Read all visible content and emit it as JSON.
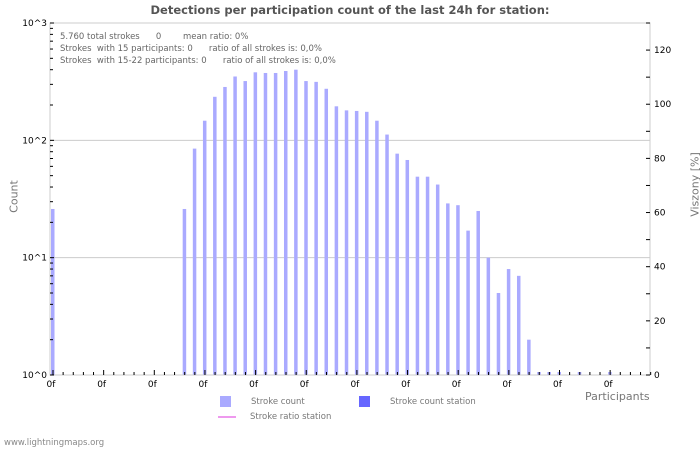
{
  "header": {
    "title": "Detections per participation count of the last 24h for station:"
  },
  "info": {
    "line1": "5.760 total strokes      0        mean ratio: 0%",
    "line2": "Strokes  with 15 participants: 0      ratio of all strokes is: 0,0%",
    "line3": "Strokes  with 15-22 participants: 0      ratio of all strokes is: 0,0%"
  },
  "axes": {
    "left_label": "Count",
    "right_label": "Viszony [%]",
    "x_label": "Participants",
    "left_ticks": [
      "10^3",
      "10^2",
      "10^1",
      "10^0"
    ],
    "right_ticks": [
      "120",
      "100",
      "80",
      "60",
      "40",
      "20",
      "0"
    ],
    "x_tick_label": "0f"
  },
  "legend": {
    "stroke_count": "Stroke count",
    "stroke_count_station": "Stroke count station",
    "stroke_ratio_station": "Stroke ratio station"
  },
  "colors": {
    "stroke_count": "#aaaaff",
    "stroke_count_station": "#6666ff",
    "stroke_ratio_station": "#ee99ee",
    "grid": "#cccccc"
  },
  "footer": {
    "site": "www.lightningmaps.org"
  },
  "chart_data": {
    "type": "bar",
    "title": "Detections per participation count of the last 24h for station:",
    "xlabel": "Participants",
    "ylabel": "Count",
    "y2label": "Viszony [%]",
    "yscale": "log",
    "ylim": [
      1,
      1000
    ],
    "y2lim": [
      0,
      130
    ],
    "x_tick_labels": [
      "0f",
      "0f",
      "0f",
      "0f",
      "0f",
      "0f",
      "0f",
      "0f",
      "0f",
      "0f",
      "0f",
      "0f"
    ],
    "categories": [
      0,
      1,
      2,
      3,
      4,
      5,
      6,
      7,
      8,
      9,
      10,
      11,
      12,
      13,
      14,
      15,
      16,
      17,
      18,
      19,
      20,
      21,
      22,
      23,
      24,
      25,
      26,
      27,
      28,
      29,
      30,
      31,
      32,
      33,
      34,
      35,
      36,
      37,
      38,
      39,
      40,
      41,
      42,
      43,
      44,
      45,
      46,
      47,
      48,
      49,
      50,
      51,
      52,
      53,
      54,
      55,
      56,
      57,
      58,
      59
    ],
    "series": [
      {
        "name": "Stroke count",
        "values": [
          26,
          0,
          0,
          0,
          0,
          0,
          0,
          0,
          0,
          0,
          0,
          0,
          0,
          26,
          85,
          147,
          235,
          285,
          350,
          320,
          380,
          375,
          375,
          390,
          400,
          320,
          315,
          275,
          195,
          180,
          178,
          175,
          147,
          112,
          77,
          68,
          49,
          49,
          42,
          29,
          28,
          17,
          25,
          10,
          5,
          8,
          7,
          2,
          1,
          1,
          1,
          0,
          1,
          0,
          0,
          1,
          0,
          0,
          0,
          0
        ]
      },
      {
        "name": "Stroke count station",
        "values": []
      },
      {
        "name": "Stroke ratio station",
        "values": []
      }
    ],
    "annotations": [
      "5.760 total strokes 0 mean ratio: 0%",
      "Strokes with 15 participants: 0 ratio of all strokes is: 0,0%",
      "Strokes with 15-22 participants: 0 ratio of all strokes is: 0,0%"
    ],
    "grid": true,
    "legend_position": "bottom"
  }
}
